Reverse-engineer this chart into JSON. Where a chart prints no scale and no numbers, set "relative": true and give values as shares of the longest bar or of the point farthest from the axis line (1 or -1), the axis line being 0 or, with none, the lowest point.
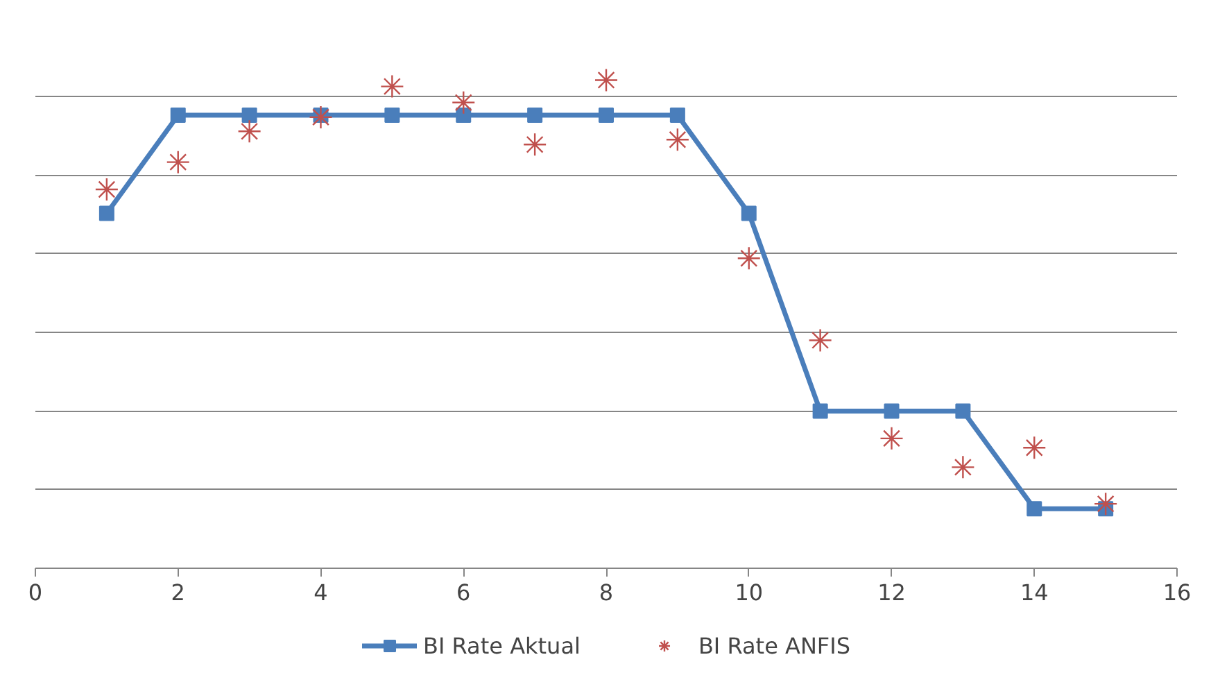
{
  "chart_data": {
    "type": "line",
    "relative": true,
    "x": [
      1,
      2,
      3,
      4,
      5,
      6,
      7,
      8,
      9,
      10,
      11,
      12,
      13,
      14,
      15
    ],
    "xlim": [
      0,
      16
    ],
    "xticks": [
      0,
      2,
      4,
      6,
      8,
      10,
      12,
      14,
      16
    ],
    "grid": "y",
    "legend": "bottom",
    "series": [
      {
        "name": "BI Rate Aktual",
        "type": "line",
        "marker": "square",
        "color": "#4a7ebb",
        "values": [
          0.727,
          0.928,
          0.928,
          0.928,
          0.928,
          0.928,
          0.928,
          0.928,
          0.928,
          0.727,
          0.322,
          0.322,
          0.322,
          0.122,
          0.122
        ]
      },
      {
        "name": "BI Rate ANFIS",
        "type": "scatter",
        "marker": "cross",
        "color": "#c0504d",
        "values": [
          0.776,
          0.832,
          0.895,
          0.924,
          0.987,
          0.954,
          0.868,
          1,
          0.878,
          0.635,
          0.467,
          0.266,
          0.207,
          0.247,
          0.132
        ]
      }
    ]
  }
}
